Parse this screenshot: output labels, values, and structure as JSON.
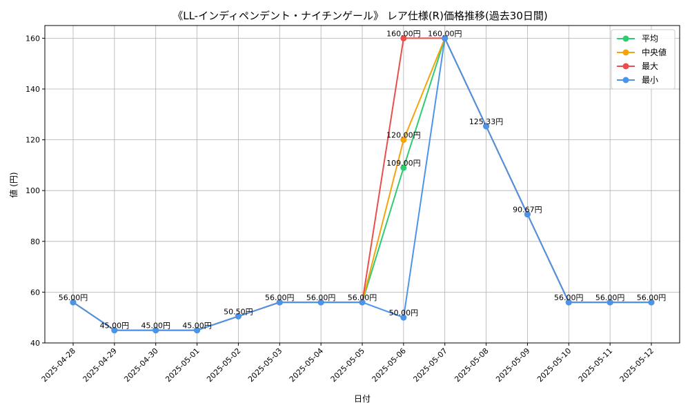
{
  "chart_data": {
    "type": "line",
    "title": "《LL-インディペンデント・ナイチンゲール》 レア仕様(R)価格推移(過去30日間)",
    "xlabel": "日付",
    "ylabel": "値 (円)",
    "ylim": [
      40,
      165
    ],
    "yticks": [
      40,
      60,
      80,
      100,
      120,
      140,
      160
    ],
    "grid": true,
    "legend_position": "top-right",
    "categories": [
      "2025-04-28",
      "2025-04-29",
      "2025-04-30",
      "2025-05-01",
      "2025-05-02",
      "2025-05-03",
      "2025-05-04",
      "2025-05-05",
      "2025-05-06",
      "2025-05-07",
      "2025-05-08",
      "2025-05-09",
      "2025-05-10",
      "2025-05-11",
      "2025-05-12"
    ],
    "series": [
      {
        "name": "平均",
        "color": "#2ecc71",
        "values": [
          56.0,
          45.0,
          45.0,
          45.0,
          50.5,
          56.0,
          56.0,
          56.0,
          109.0,
          160.0,
          125.33,
          90.67,
          56.0,
          56.0,
          56.0
        ]
      },
      {
        "name": "中央値",
        "color": "#f5a30b",
        "values": [
          56.0,
          45.0,
          45.0,
          45.0,
          50.5,
          56.0,
          56.0,
          56.0,
          120.0,
          160.0,
          125.33,
          90.67,
          56.0,
          56.0,
          56.0
        ]
      },
      {
        "name": "最大",
        "color": "#eb4d4b",
        "values": [
          56.0,
          45.0,
          45.0,
          45.0,
          50.5,
          56.0,
          56.0,
          56.0,
          160.0,
          160.0,
          125.33,
          90.67,
          56.0,
          56.0,
          56.0
        ]
      },
      {
        "name": "最小",
        "color": "#4a94ea",
        "values": [
          56.0,
          45.0,
          45.0,
          45.0,
          50.5,
          56.0,
          56.0,
          56.0,
          50.0,
          160.0,
          125.33,
          90.67,
          56.0,
          56.0,
          56.0
        ]
      }
    ],
    "data_labels": [
      {
        "x": "2025-04-28",
        "y": 56.0,
        "text": "56.00円"
      },
      {
        "x": "2025-04-29",
        "y": 45.0,
        "text": "45.00円"
      },
      {
        "x": "2025-04-30",
        "y": 45.0,
        "text": "45.00円"
      },
      {
        "x": "2025-05-01",
        "y": 45.0,
        "text": "45.00円"
      },
      {
        "x": "2025-05-02",
        "y": 50.5,
        "text": "50.50円"
      },
      {
        "x": "2025-05-03",
        "y": 56.0,
        "text": "56.00円"
      },
      {
        "x": "2025-05-04",
        "y": 56.0,
        "text": "56.00円"
      },
      {
        "x": "2025-05-05",
        "y": 56.0,
        "text": "56.00円"
      },
      {
        "x": "2025-05-06",
        "y": 160.0,
        "text": "160.00円"
      },
      {
        "x": "2025-05-06",
        "y": 120.0,
        "text": "120.00円"
      },
      {
        "x": "2025-05-06",
        "y": 109.0,
        "text": "109.00円"
      },
      {
        "x": "2025-05-06",
        "y": 50.0,
        "text": "50.00円"
      },
      {
        "x": "2025-05-07",
        "y": 160.0,
        "text": "160.00円"
      },
      {
        "x": "2025-05-08",
        "y": 125.33,
        "text": "125.33円"
      },
      {
        "x": "2025-05-09",
        "y": 90.67,
        "text": "90.67円"
      },
      {
        "x": "2025-05-10",
        "y": 56.0,
        "text": "56.00円"
      },
      {
        "x": "2025-05-11",
        "y": 56.0,
        "text": "56.00円"
      },
      {
        "x": "2025-05-12",
        "y": 56.0,
        "text": "56.00円"
      }
    ]
  }
}
